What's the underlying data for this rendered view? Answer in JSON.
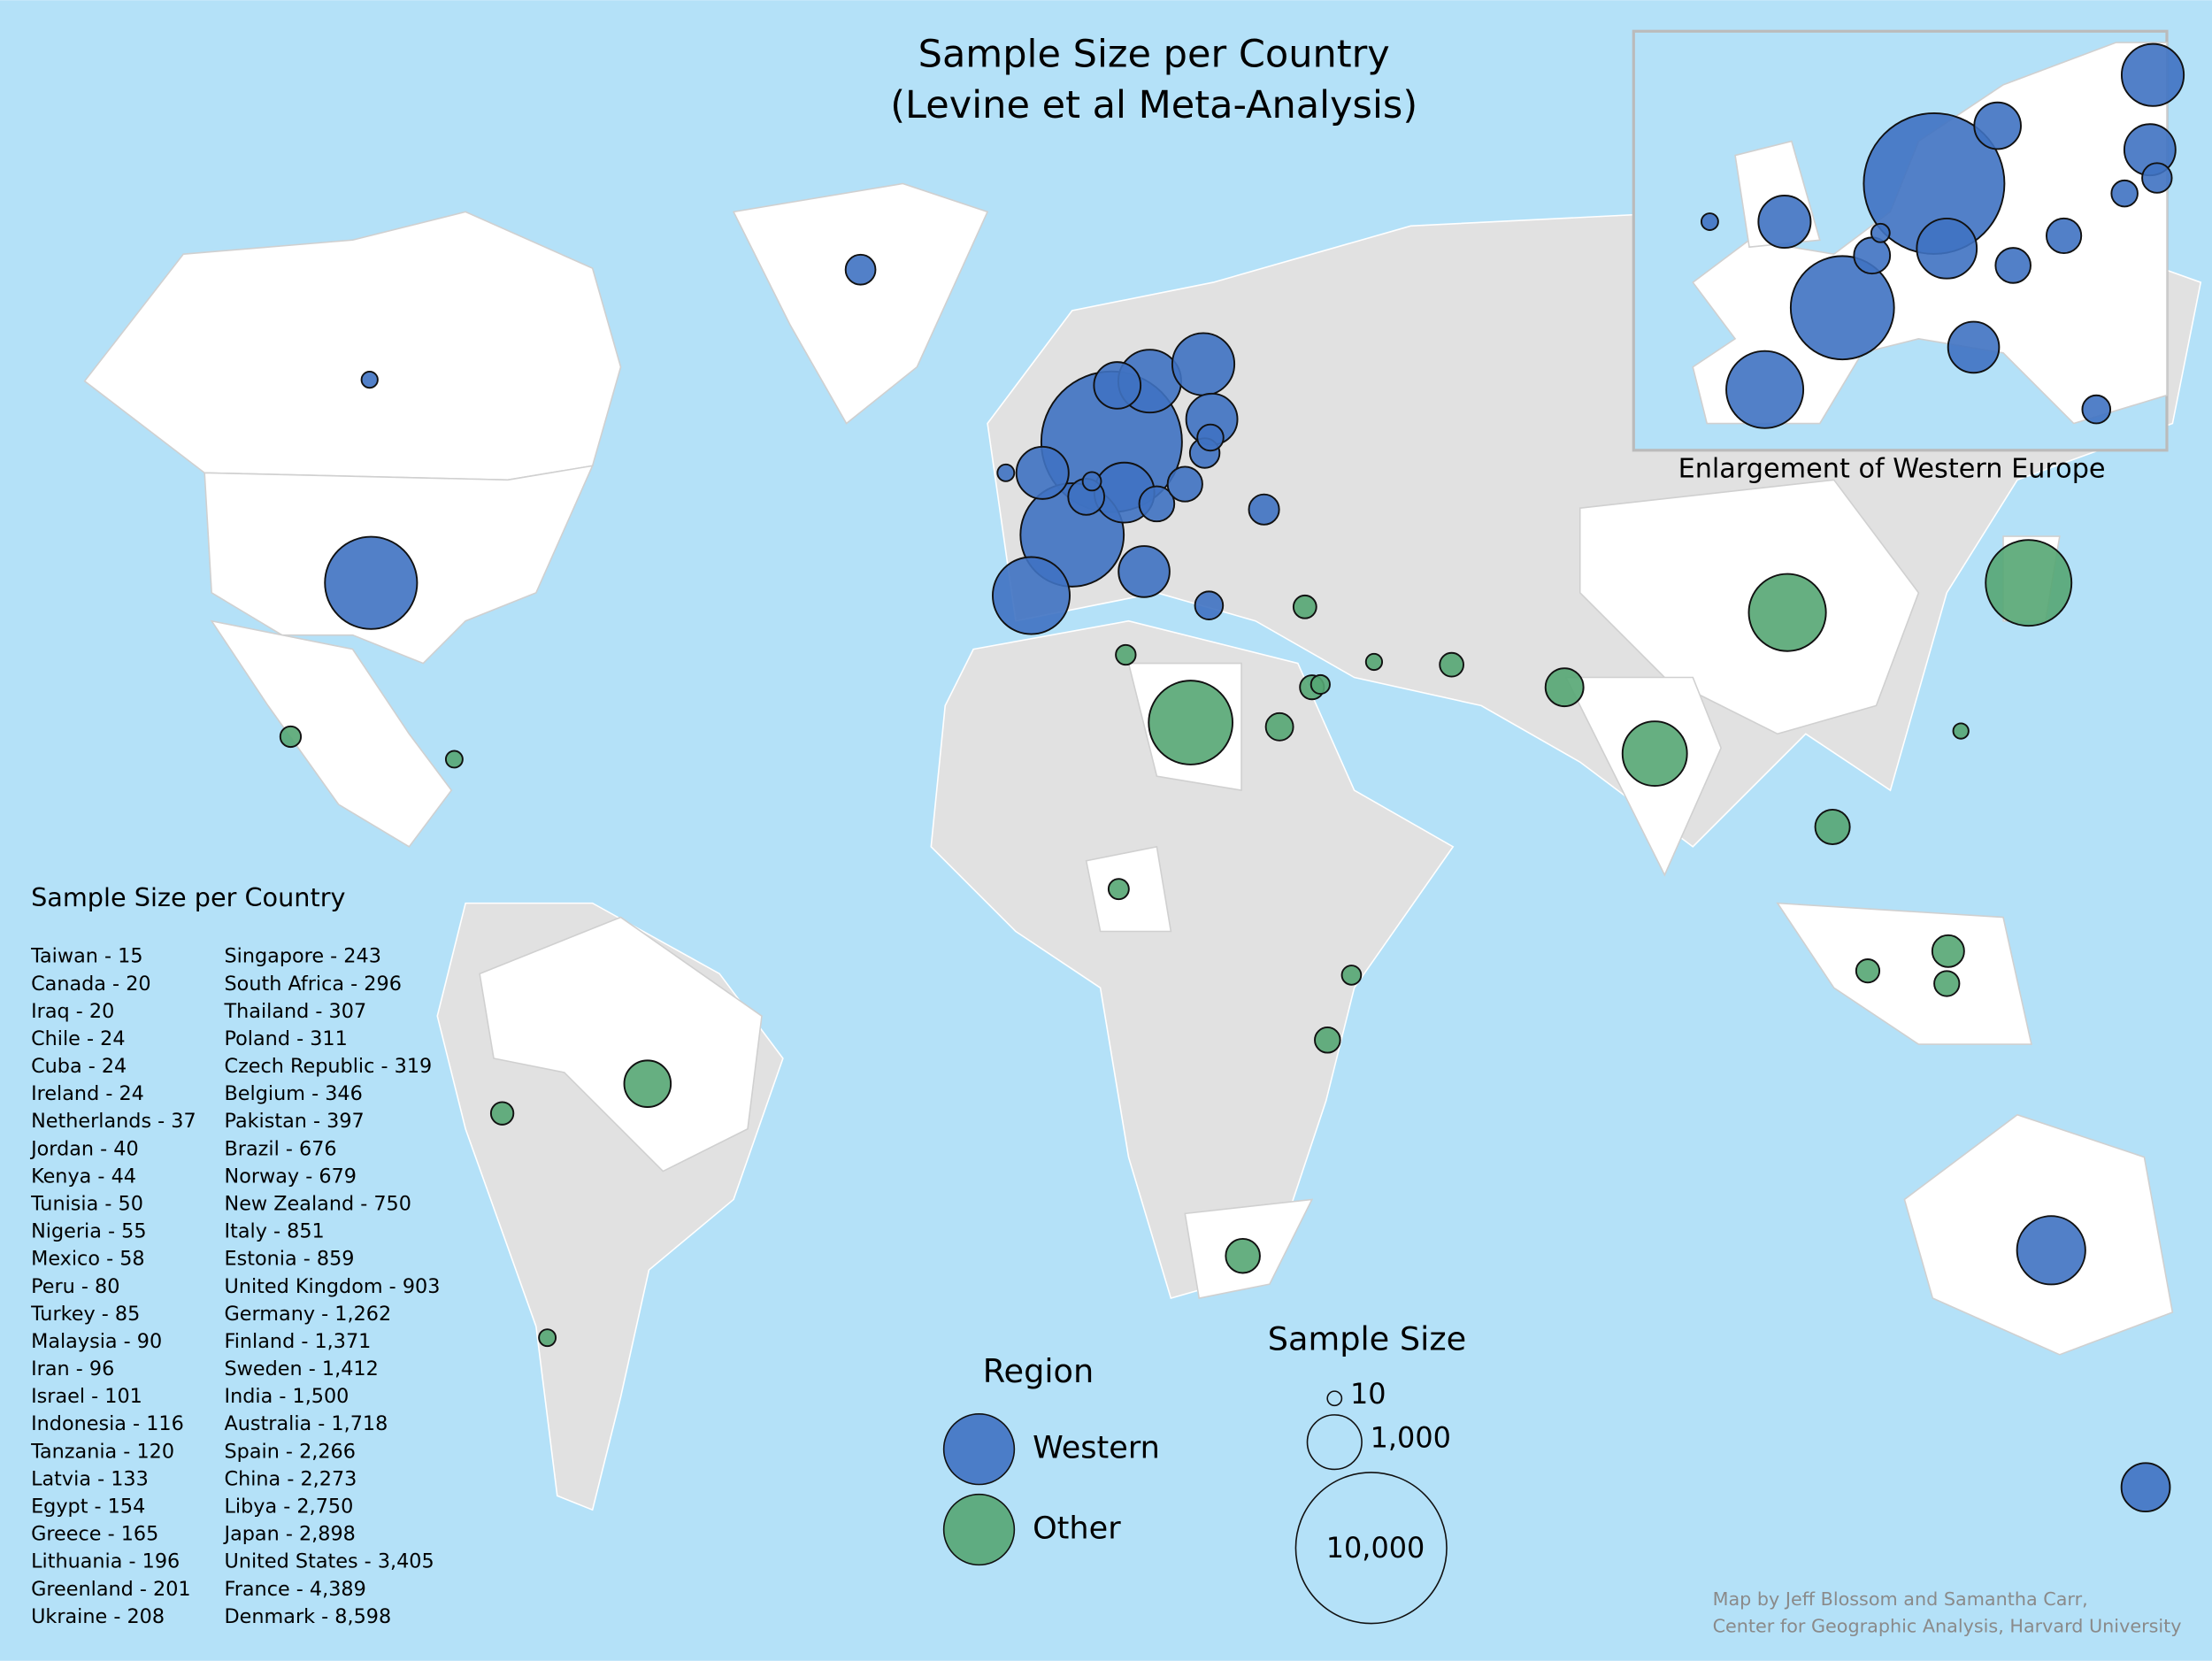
{
  "title": [
    "Sample Size per Country",
    "(Levine et al Meta-Analysis)"
  ],
  "inset_label": "Enlargement of Western Europe",
  "list_title": "Sample Size per Country",
  "regions": [
    {
      "name": "Western",
      "color": "#3f72c2"
    },
    {
      "name": "Other",
      "color": "#55a673"
    }
  ],
  "region_title": "Region",
  "size_legend": {
    "title": "Sample Size",
    "items": [
      10,
      {
        "value": 1000,
        "label": "1,000"
      },
      {
        "value": 10000,
        "label": "10,000"
      }
    ]
  },
  "credit": [
    "Map by Jeff Blossom and Samantha Carr,",
    "Center for Geographic Analysis, Harvard University"
  ],
  "countries": [
    {
      "label": "Taiwan - 15",
      "value": 15,
      "region": "Other"
    },
    {
      "label": "Canada - 20",
      "value": 20,
      "region": "Western"
    },
    {
      "label": "Iraq - 20",
      "value": 20,
      "region": "Other"
    },
    {
      "label": "Chile - 24",
      "value": 24,
      "region": "Other"
    },
    {
      "label": "Cuba - 24",
      "value": 24,
      "region": "Other"
    },
    {
      "label": "Ireland - 24",
      "value": 24,
      "region": "Western"
    },
    {
      "label": "Netherlands - 37",
      "value": 37,
      "region": "Western"
    },
    {
      "label": "Jordan - 40",
      "value": 40,
      "region": "Other"
    },
    {
      "label": "Kenya - 44",
      "value": 44,
      "region": "Other"
    },
    {
      "label": "Tunisia - 50",
      "value": 50,
      "region": "Other"
    },
    {
      "label": "Nigeria - 55",
      "value": 55,
      "region": "Other"
    },
    {
      "label": "Mexico - 58",
      "value": 58,
      "region": "Other"
    },
    {
      "label": "Peru - 80",
      "value": 80,
      "region": "Other"
    },
    {
      "label": "Turkey - 85",
      "value": 85,
      "region": "Other"
    },
    {
      "label": "Malaysia - 90",
      "value": 90,
      "region": "Other"
    },
    {
      "label": "Iran - 96",
      "value": 96,
      "region": "Other"
    },
    {
      "label": "Israel - 101",
      "value": 101,
      "region": "Other"
    },
    {
      "label": "Indonesia - 116",
      "value": 116,
      "region": "Other"
    },
    {
      "label": "Tanzania - 120",
      "value": 120,
      "region": "Other"
    },
    {
      "label": "Latvia - 133",
      "value": 133,
      "region": "Western"
    },
    {
      "label": "Egypt - 154",
      "value": 154,
      "region": "Other"
    },
    {
      "label": "Greece - 165",
      "value": 165,
      "region": "Western"
    },
    {
      "label": "Lithuania - 196",
      "value": 196,
      "region": "Western"
    },
    {
      "label": "Greenland - 201",
      "value": 201,
      "region": "Western"
    },
    {
      "label": "Ukraine - 208",
      "value": 208,
      "region": "Western"
    },
    {
      "label": "Singapore - 243",
      "value": 243,
      "region": "Other"
    },
    {
      "label": "South Africa - 296",
      "value": 296,
      "region": "Other"
    },
    {
      "label": "Thailand - 307",
      "value": 307,
      "region": "Other"
    },
    {
      "label": "Poland - 311",
      "value": 311,
      "region": "Western"
    },
    {
      "label": "Czech Republic - 319",
      "value": 319,
      "region": "Western"
    },
    {
      "label": "Belgium - 346",
      "value": 346,
      "region": "Western"
    },
    {
      "label": "Pakistan - 397",
      "value": 397,
      "region": "Other"
    },
    {
      "label": "Brazil - 676",
      "value": 676,
      "region": "Other"
    },
    {
      "label": "Norway - 679",
      "value": 679,
      "region": "Western"
    },
    {
      "label": "New Zealand - 750",
      "value": 750,
      "region": "Western"
    },
    {
      "label": "Italy - 851",
      "value": 851,
      "region": "Western"
    },
    {
      "label": "Estonia - 859",
      "value": 859,
      "region": "Western"
    },
    {
      "label": "United Kingdom - 903",
      "value": 903,
      "region": "Western"
    },
    {
      "label": "Germany - 1,262",
      "value": 1262,
      "region": "Western"
    },
    {
      "label": "Finland - 1,371",
      "value": 1371,
      "region": "Western"
    },
    {
      "label": "Sweden - 1,412",
      "value": 1412,
      "region": "Western"
    },
    {
      "label": "India - 1,500",
      "value": 1500,
      "region": "Other"
    },
    {
      "label": "Australia - 1,718",
      "value": 1718,
      "region": "Western"
    },
    {
      "label": "Spain - 2,266",
      "value": 2266,
      "region": "Western"
    },
    {
      "label": "China - 2,273",
      "value": 2273,
      "region": "Other"
    },
    {
      "label": "Libya - 2,750",
      "value": 2750,
      "region": "Other"
    },
    {
      "label": "Japan - 2,898",
      "value": 2898,
      "region": "Other"
    },
    {
      "label": "United States - 3,405",
      "value": 3405,
      "region": "Western"
    },
    {
      "label": "France - 4,389",
      "value": 4389,
      "region": "Western"
    },
    {
      "label": "Denmark - 8,598",
      "value": 8598,
      "region": "Western"
    }
  ]
}
